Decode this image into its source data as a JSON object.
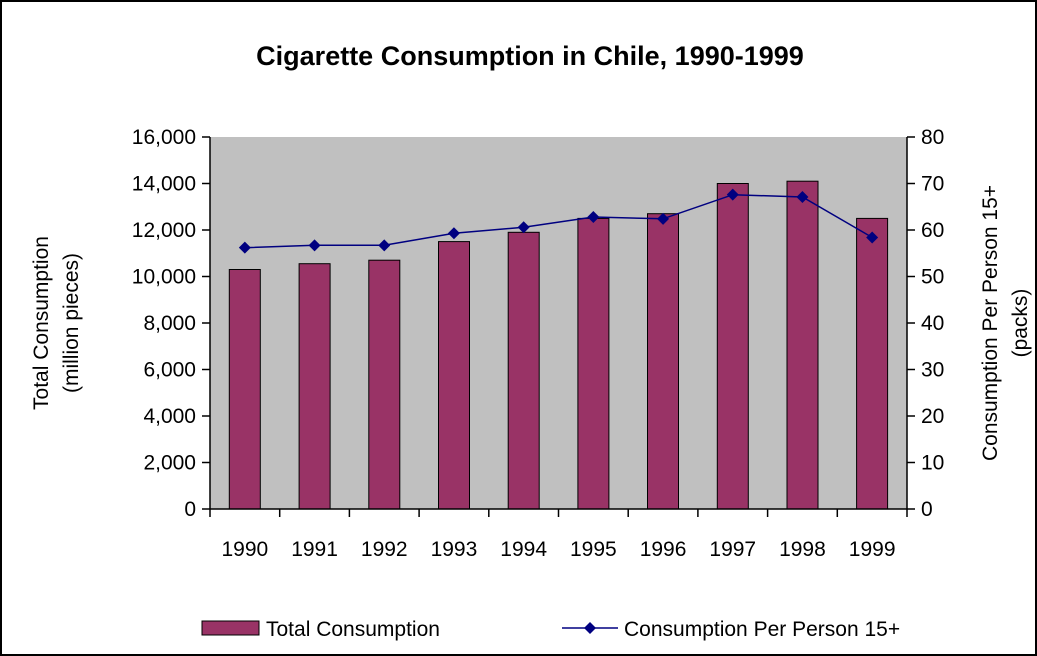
{
  "chart_data": {
    "type": "bar",
    "title": "Cigarette Consumption in Chile, 1990-1999",
    "categories": [
      "1990",
      "1991",
      "1992",
      "1993",
      "1994",
      "1995",
      "1996",
      "1997",
      "1998",
      "1999"
    ],
    "y_left": {
      "label_line1": "Total Consumption",
      "label_line2": "(million pieces)",
      "ylim": [
        0,
        16000
      ],
      "ticks": [
        "0",
        "2,000",
        "4,000",
        "6,000",
        "8,000",
        "10,000",
        "12,000",
        "14,000",
        "16,000"
      ]
    },
    "y_right": {
      "label_line1": "Consumption Per Person 15+",
      "label_line2": "(packs)",
      "ylim": [
        0,
        80
      ],
      "ticks": [
        "0",
        "10",
        "20",
        "30",
        "40",
        "50",
        "60",
        "70",
        "80"
      ]
    },
    "series": [
      {
        "name": "Total Consumption",
        "type": "bar",
        "axis": "left",
        "color": "#993366",
        "values": [
          10300,
          10550,
          10700,
          11500,
          11900,
          12500,
          12700,
          14000,
          14100,
          12500
        ]
      },
      {
        "name": "Consumption Per Person 15+",
        "type": "line",
        "axis": "right",
        "color": "#000080",
        "marker": "diamond",
        "values": [
          56.2,
          56.7,
          56.7,
          59.3,
          60.6,
          62.8,
          62.4,
          67.6,
          67.1,
          58.4
        ]
      }
    ],
    "plot_background": "#c0c0c0",
    "grid": false,
    "legend_position": "bottom"
  }
}
